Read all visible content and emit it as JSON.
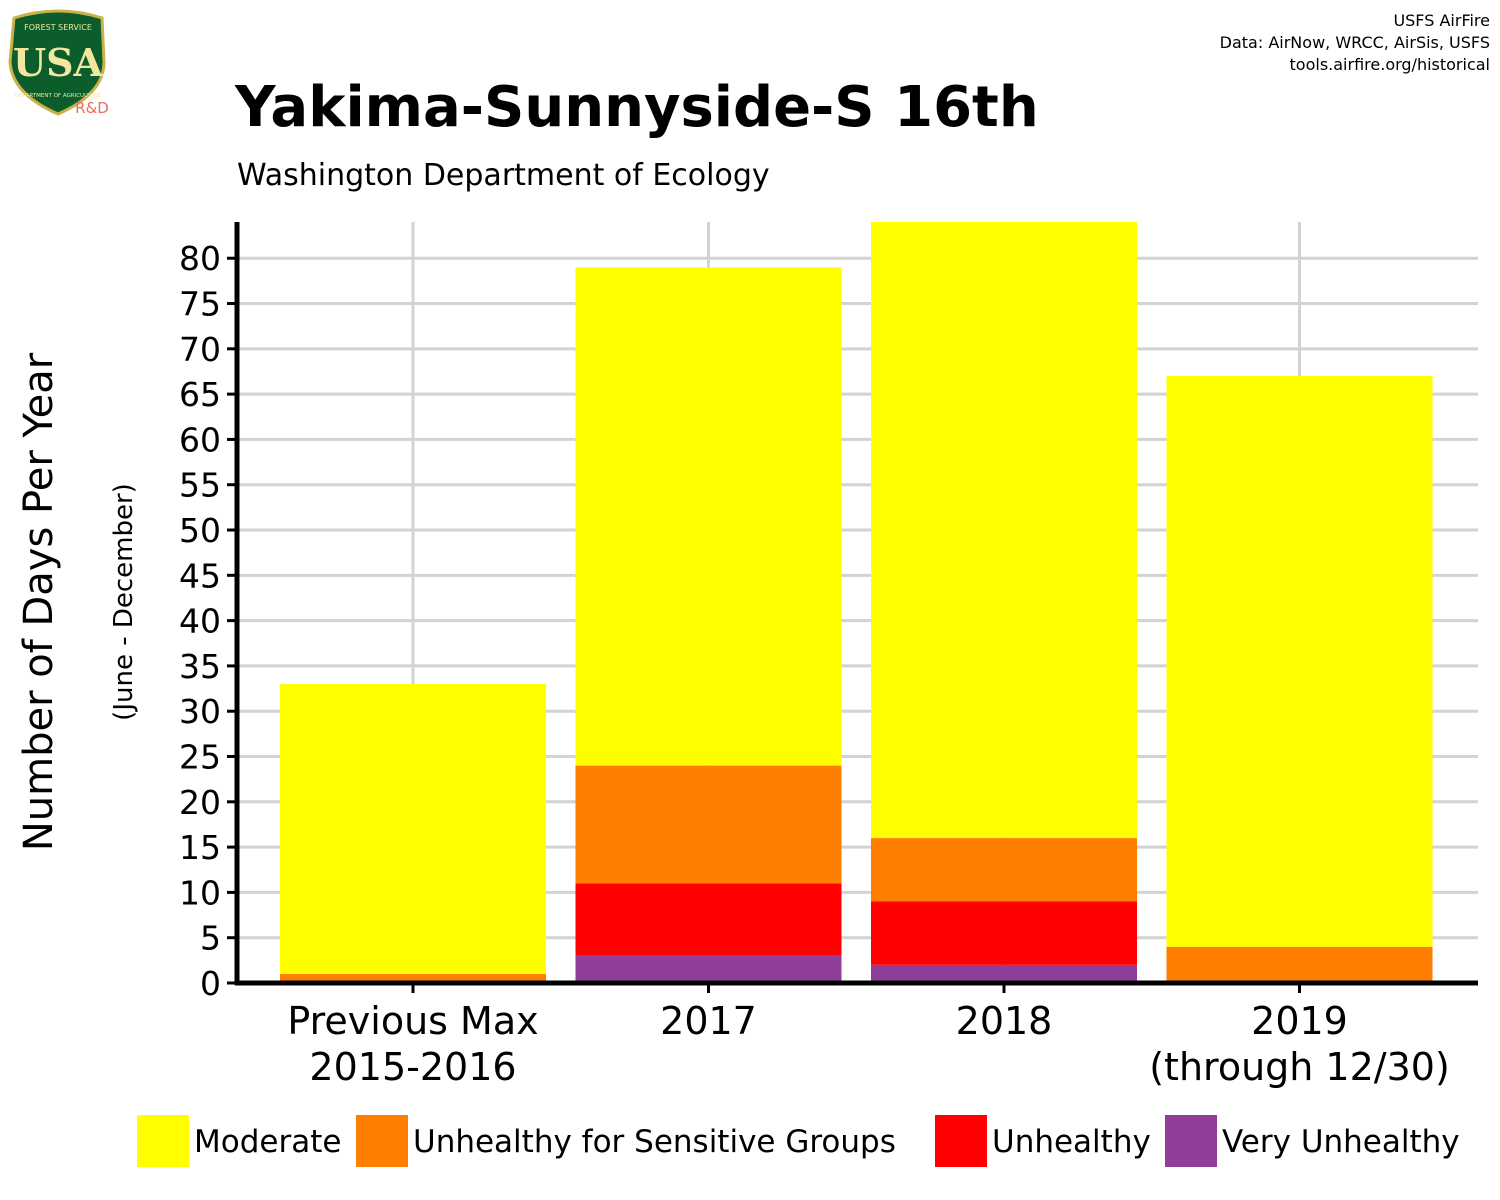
{
  "logo": {
    "top_text": "FOREST SERVICE",
    "letters": "USA",
    "bottom_text": "DEPARTMENT OF AGRICULTURE",
    "rd": "R&D",
    "shield_color": "#0b5d2c",
    "letter_color": "#f2e6a0",
    "rd_color": "#ef6b5a"
  },
  "credits": [
    "USFS AirFire",
    "Data: AirNow, WRCC, AirSis, USFS",
    "tools.airfire.org/historical"
  ],
  "chart_data": {
    "type": "bar",
    "stacked": true,
    "title": "Yakima-Sunnyside-S 16th",
    "subtitle": "Washington Department of Ecology",
    "ylabel": "Number of Days Per Year",
    "ylabel_sub": "(June - December)",
    "xlabel": "",
    "categories": [
      [
        "Previous Max",
        "2015-2016"
      ],
      [
        "2017"
      ],
      [
        "2018"
      ],
      [
        "2019",
        "(through 12/30)"
      ]
    ],
    "ylim": [
      0,
      84
    ],
    "yticks": [
      0,
      5,
      10,
      15,
      20,
      25,
      30,
      35,
      40,
      45,
      50,
      55,
      60,
      65,
      70,
      75,
      80
    ],
    "grid": true,
    "legend_position": "bottom",
    "series": [
      {
        "name": "Very Unhealthy",
        "color": "#8f3f97",
        "values": [
          0,
          3,
          2,
          0
        ]
      },
      {
        "name": "Unhealthy",
        "color": "#ff0000",
        "values": [
          0,
          8,
          7,
          0
        ]
      },
      {
        "name": "Unhealthy for Sensitive Groups",
        "color": "#ff7e00",
        "values": [
          1,
          13,
          7,
          4
        ]
      },
      {
        "name": "Moderate",
        "color": "#ffff00",
        "values": [
          32,
          55,
          68,
          63
        ]
      }
    ],
    "legend_order": [
      "Moderate",
      "Unhealthy for Sensitive Groups",
      "Unhealthy",
      "Very Unhealthy"
    ]
  }
}
